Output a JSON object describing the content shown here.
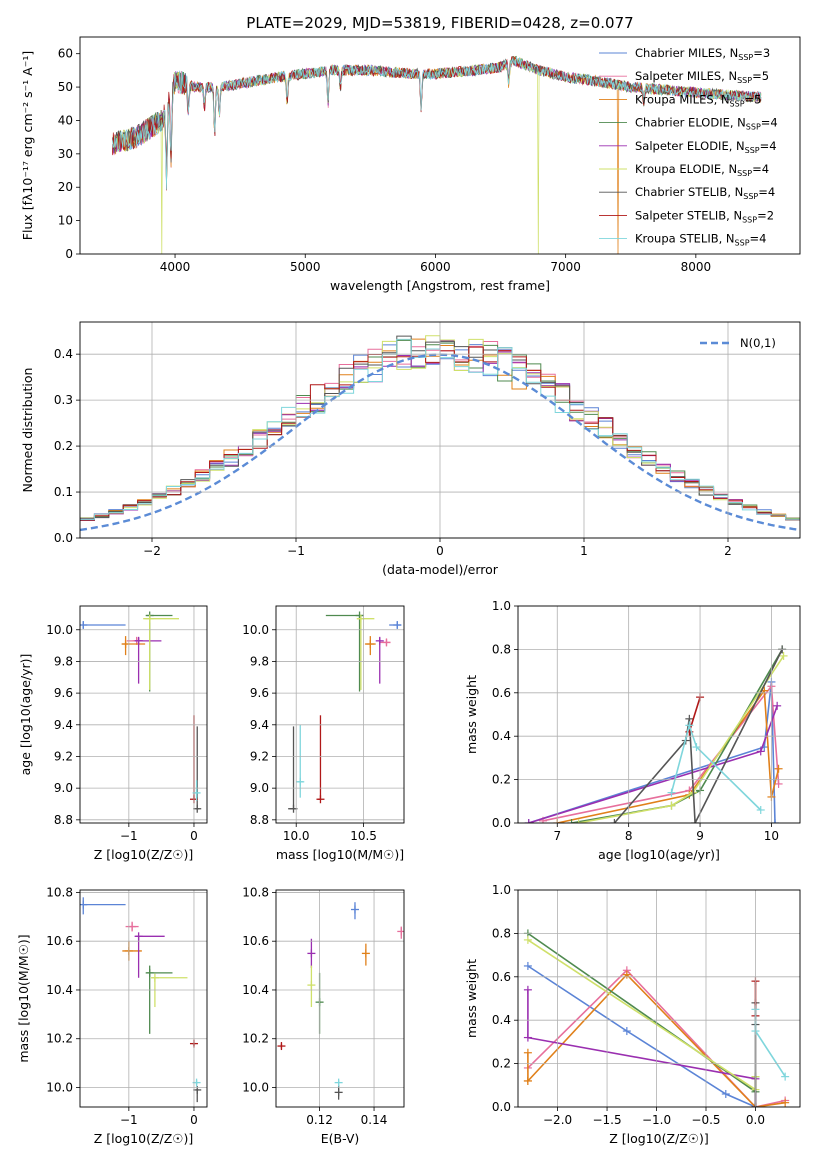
{
  "figure_title": "PLATE=2029, MJD=53819, FIBERID=0428, z=0.077",
  "colors": {
    "Chabrier MILES": "#5b84d6",
    "Salpeter MILES": "#e76f9c",
    "Kroupa MILES": "#e0801a",
    "Chabrier ELODIE": "#4f8a4f",
    "Salpeter ELODIE": "#9a2fb0",
    "Kroupa ELODIE": "#cfe06a",
    "Chabrier STELIB": "#555555",
    "Salpeter STELIB": "#b01818",
    "Kroupa STELIB": "#7fd6dc"
  },
  "chart_data": [
    {
      "id": "spectrum",
      "type": "line",
      "title": "PLATE=2029, MJD=53819, FIBERID=0428, z=0.077",
      "xlabel": "wavelength [Angstrom, rest frame]",
      "ylabel": "Flux [fλ10⁻¹⁷ erg cm⁻² s⁻¹ A⁻¹]",
      "xlim": [
        3270,
        8800
      ],
      "ylim": [
        0,
        65
      ],
      "xticks": [
        "4000",
        "5000",
        "6000",
        "7000",
        "8000"
      ],
      "yticks": [
        "0",
        "10",
        "20",
        "30",
        "40",
        "50",
        "60"
      ],
      "legend_position": "top-right",
      "legend": [
        {
          "label": "Chabrier MILES, N",
          "sub": "SSP",
          "eq": "=3",
          "series": "Chabrier MILES"
        },
        {
          "label": "Salpeter MILES, N",
          "sub": "SSP",
          "eq": "=5",
          "series": "Salpeter MILES"
        },
        {
          "label": "Kroupa MILES, N",
          "sub": "SSP",
          "eq": "=5",
          "series": "Kroupa MILES"
        },
        {
          "label": "Chabrier ELODIE, N",
          "sub": "SSP",
          "eq": "=4",
          "series": "Chabrier ELODIE"
        },
        {
          "label": "Salpeter ELODIE, N",
          "sub": "SSP",
          "eq": "=4",
          "series": "Salpeter ELODIE"
        },
        {
          "label": "Kroupa ELODIE, N",
          "sub": "SSP",
          "eq": "=4",
          "series": "Kroupa ELODIE"
        },
        {
          "label": "Chabrier STELIB, N",
          "sub": "SSP",
          "eq": "=4",
          "series": "Chabrier STELIB"
        },
        {
          "label": "Salpeter STELIB, N",
          "sub": "SSP",
          "eq": "=2",
          "series": "Salpeter STELIB"
        },
        {
          "label": "Kroupa STELIB, N",
          "sub": "SSP",
          "eq": "=4",
          "series": "Kroupa STELIB"
        }
      ],
      "continuum_x": [
        3520,
        3700,
        3900,
        4000,
        4150,
        4350,
        4500,
        4800,
        5000,
        5200,
        5500,
        5800,
        6000,
        6300,
        6500,
        6600,
        6800,
        7000,
        7200,
        7500,
        7800,
        8100,
        8500
      ],
      "continuum_y": [
        33,
        35,
        40,
        52,
        50,
        50,
        51,
        53,
        54,
        55,
        55,
        54,
        54,
        55,
        56,
        58,
        55,
        53,
        52,
        50,
        49,
        48,
        47
      ],
      "absorption_lines": [
        [
          3934,
          22
        ],
        [
          3969,
          20
        ],
        [
          4102,
          8
        ],
        [
          4226,
          6
        ],
        [
          4304,
          14
        ],
        [
          4340,
          8
        ],
        [
          4861,
          8
        ],
        [
          5175,
          10
        ],
        [
          5270,
          5
        ],
        [
          5890,
          10
        ],
        [
          6563,
          6
        ],
        [
          7600,
          4
        ]
      ],
      "dropouts": [
        {
          "series": "Kroupa ELODIE",
          "x": 3900
        },
        {
          "series": "Kroupa ELODIE",
          "x": 6790
        },
        {
          "series": "Kroupa MILES",
          "x": 7400
        }
      ]
    },
    {
      "id": "residuals",
      "type": "histogram",
      "xlabel": "(data-model)/error",
      "ylabel": "Normed distribution",
      "xlim": [
        -2.5,
        2.5
      ],
      "ylim": [
        0,
        0.47
      ],
      "xticks": [
        "−2",
        "−1",
        "0",
        "1",
        "2"
      ],
      "yticks": [
        "0.0",
        "0.1",
        "0.2",
        "0.3",
        "0.4"
      ],
      "bin_width": 0.1,
      "reference": {
        "label": "N(0,1)",
        "mean": 0,
        "sigma": 1
      },
      "legend_position": "top-right"
    },
    {
      "id": "age-vs-Z",
      "type": "scatter",
      "xlabel": "Z [log10(Z/Z☉)]",
      "ylabel": "age [log10(age/yr)]",
      "xlim": [
        -1.75,
        0.2
      ],
      "ylim": [
        8.78,
        10.15
      ],
      "xticks": [
        "−1",
        "0"
      ],
      "yticks": [
        "8.8",
        "9.0",
        "9.2",
        "9.4",
        "9.6",
        "9.8",
        "10.0"
      ],
      "points": [
        {
          "series": "Chabrier MILES",
          "x": -1.7,
          "y": 10.03,
          "xerr": [
            0.0,
            0.65
          ],
          "yerr": [
            0.02,
            0.02
          ]
        },
        {
          "series": "Salpeter MILES",
          "x": -0.88,
          "y": 9.93,
          "xerr": [
            0.15,
            0.1
          ],
          "yerr": [
            0.02,
            0.02
          ]
        },
        {
          "series": "Kroupa MILES",
          "x": -1.05,
          "y": 9.91,
          "xerr": [
            0.05,
            0.3
          ],
          "yerr": [
            0.07,
            0.05
          ]
        },
        {
          "series": "Chabrier ELODIE",
          "x": -0.68,
          "y": 10.09,
          "xerr": [
            0.05,
            0.35
          ],
          "yerr": [
            0.48,
            0.0
          ]
        },
        {
          "series": "Salpeter ELODIE",
          "x": -0.85,
          "y": 9.93,
          "xerr": [
            0.05,
            0.35
          ],
          "yerr": [
            0.27,
            0.02
          ]
        },
        {
          "series": "Kroupa ELODIE",
          "x": -0.68,
          "y": 10.07,
          "xerr": [
            0.1,
            0.45
          ],
          "yerr": [
            0.45,
            0.0
          ]
        },
        {
          "series": "Chabrier STELIB",
          "x": 0.05,
          "y": 8.87,
          "xerr": [
            0.02,
            0.03
          ],
          "yerr": [
            0.0,
            0.52
          ]
        },
        {
          "series": "Salpeter STELIB",
          "x": 0.0,
          "y": 8.93,
          "xerr": [
            0.02,
            0.02
          ],
          "yerr": [
            0.0,
            0.53
          ]
        },
        {
          "series": "Kroupa STELIB",
          "x": 0.04,
          "y": 8.97,
          "xerr": [
            0.03,
            0.03
          ],
          "yerr": [
            0.05,
            0.08
          ]
        }
      ]
    },
    {
      "id": "age-vs-mass",
      "type": "scatter",
      "xlabel": "mass [log10(M/M☉)]",
      "ylabel": "",
      "xlim": [
        9.85,
        10.8
      ],
      "ylim": [
        8.78,
        10.15
      ],
      "xticks": [
        "10.0",
        "10.5"
      ],
      "yticks": [
        "8.8",
        "9.0",
        "9.2",
        "9.4",
        "9.6",
        "9.8",
        "10.0"
      ],
      "points": [
        {
          "series": "Chabrier MILES",
          "x": 10.75,
          "y": 10.03,
          "xerr": [
            0.06,
            0.03
          ],
          "yerr": [
            0.02,
            0.02
          ]
        },
        {
          "series": "Salpeter MILES",
          "x": 10.67,
          "y": 9.92,
          "xerr": [
            0.05,
            0.03
          ],
          "yerr": [
            0.02,
            0.02
          ]
        },
        {
          "series": "Kroupa MILES",
          "x": 10.55,
          "y": 9.91,
          "xerr": [
            0.04,
            0.04
          ],
          "yerr": [
            0.07,
            0.05
          ]
        },
        {
          "series": "Chabrier ELODIE",
          "x": 10.47,
          "y": 10.09,
          "xerr": [
            0.25,
            0.03
          ],
          "yerr": [
            0.48,
            0.0
          ]
        },
        {
          "series": "Salpeter ELODIE",
          "x": 10.62,
          "y": 9.93,
          "xerr": [
            0.0,
            0.0
          ],
          "yerr": [
            0.27,
            0.02
          ]
        },
        {
          "series": "Kroupa ELODIE",
          "x": 10.48,
          "y": 10.07,
          "xerr": [
            0.03,
            0.1
          ],
          "yerr": [
            0.45,
            0.0
          ]
        },
        {
          "series": "Chabrier STELIB",
          "x": 9.98,
          "y": 8.87,
          "xerr": [
            0.04,
            0.02
          ],
          "yerr": [
            0.0,
            0.52
          ]
        },
        {
          "series": "Salpeter STELIB",
          "x": 10.18,
          "y": 8.93,
          "xerr": [
            0.02,
            0.0
          ],
          "yerr": [
            0.0,
            0.53
          ]
        },
        {
          "series": "Kroupa STELIB",
          "x": 10.03,
          "y": 9.04,
          "xerr": [
            0.02,
            0.02
          ],
          "yerr": [
            0.1,
            0.36
          ]
        }
      ]
    },
    {
      "id": "weight-vs-age",
      "type": "line",
      "xlabel": "age [log10(age/yr)]",
      "ylabel": "mass weight",
      "xlim": [
        6.45,
        10.4
      ],
      "ylim": [
        0,
        1
      ],
      "xticks": [
        "7",
        "8",
        "9",
        "10"
      ],
      "yticks": [
        "0.0",
        "0.2",
        "0.4",
        "0.6",
        "0.8",
        "1.0"
      ],
      "series": [
        {
          "name": "Chabrier MILES",
          "x": [
            6.6,
            9.9,
            10.0,
            10.05
          ],
          "y": [
            0.0,
            0.35,
            0.65,
            0.0
          ]
        },
        {
          "name": "Salpeter MILES",
          "x": [
            6.8,
            8.85,
            10.0,
            10.1
          ],
          "y": [
            0.01,
            0.15,
            0.63,
            0.18
          ]
        },
        {
          "name": "Kroupa MILES",
          "x": [
            7.0,
            8.85,
            9.9,
            10.0,
            10.1
          ],
          "y": [
            0.0,
            0.13,
            0.61,
            0.12,
            0.25
          ]
        },
        {
          "name": "Chabrier ELODIE",
          "x": [
            7.2,
            8.6,
            9.0,
            10.15
          ],
          "y": [
            0.0,
            0.08,
            0.15,
            0.8
          ]
        },
        {
          "name": "Salpeter ELODIE",
          "x": [
            6.6,
            9.85,
            10.08
          ],
          "y": [
            0.0,
            0.33,
            0.54
          ]
        },
        {
          "name": "Kroupa ELODIE",
          "x": [
            7.3,
            8.6,
            8.9,
            10.17
          ],
          "y": [
            0.0,
            0.08,
            0.14,
            0.77
          ]
        },
        {
          "name": "Chabrier STELIB",
          "x": [
            7.8,
            8.8,
            8.85,
            8.93,
            10.15
          ],
          "y": [
            0.0,
            0.38,
            0.48,
            0.0,
            0.8
          ]
        },
        {
          "name": "Salpeter STELIB",
          "x": [
            8.85,
            9.0
          ],
          "y": [
            0.42,
            0.58
          ]
        },
        {
          "name": "Kroupa STELIB",
          "x": [
            8.6,
            8.85,
            8.95,
            9.85
          ],
          "y": [
            0.14,
            0.45,
            0.35,
            0.06
          ]
        }
      ]
    },
    {
      "id": "mass-vs-Z",
      "type": "scatter",
      "xlabel": "Z [log10(Z/Z☉)]",
      "ylabel": "mass [log10(M/M☉)]",
      "xlim": [
        -1.75,
        0.2
      ],
      "ylim": [
        9.92,
        10.81
      ],
      "xticks": [
        "−1",
        "0"
      ],
      "yticks": [
        "10.0",
        "10.2",
        "10.4",
        "10.6",
        "10.8"
      ],
      "points": [
        {
          "series": "Chabrier MILES",
          "x": -1.7,
          "y": 10.75,
          "xerr": [
            0.0,
            0.65
          ],
          "yerr": [
            0.04,
            0.03
          ]
        },
        {
          "series": "Salpeter MILES",
          "x": -0.95,
          "y": 10.66,
          "xerr": [
            0.1,
            0.1
          ],
          "yerr": [
            0.02,
            0.02
          ]
        },
        {
          "series": "Kroupa MILES",
          "x": -1.0,
          "y": 10.56,
          "xerr": [
            0.1,
            0.2
          ],
          "yerr": [
            0.04,
            0.04
          ]
        },
        {
          "series": "Chabrier ELODIE",
          "x": -0.68,
          "y": 10.47,
          "xerr": [
            0.05,
            0.35
          ],
          "yerr": [
            0.25,
            0.03
          ]
        },
        {
          "series": "Salpeter ELODIE",
          "x": -0.85,
          "y": 10.62,
          "xerr": [
            0.05,
            0.4
          ],
          "yerr": [
            0.17,
            0.0
          ]
        },
        {
          "series": "Kroupa ELODIE",
          "x": -0.6,
          "y": 10.45,
          "xerr": [
            0.05,
            0.5
          ],
          "yerr": [
            0.12,
            0.0
          ]
        },
        {
          "series": "Chabrier STELIB",
          "x": 0.05,
          "y": 9.99,
          "xerr": [
            0.02,
            0.02
          ],
          "yerr": [
            0.05,
            0.0
          ]
        },
        {
          "series": "Salpeter STELIB",
          "x": 0.0,
          "y": 10.18,
          "xerr": [
            0.02,
            0.02
          ],
          "yerr": [
            0.01,
            0.0
          ]
        },
        {
          "series": "Kroupa STELIB",
          "x": 0.04,
          "y": 10.02,
          "xerr": [
            0.02,
            0.02
          ],
          "yerr": [
            0.01,
            0.01
          ]
        }
      ]
    },
    {
      "id": "mass-vs-ebv",
      "type": "scatter",
      "xlabel": "E(B-V)",
      "ylabel": "",
      "xlim": [
        0.104,
        0.151
      ],
      "ylim": [
        9.92,
        10.81
      ],
      "xticks": [
        "0.12",
        "0.14"
      ],
      "yticks": [
        "10.0",
        "10.2",
        "10.4",
        "10.6",
        "10.8"
      ],
      "points": [
        {
          "series": "Chabrier MILES",
          "x": 0.133,
          "y": 10.73,
          "yerr": [
            0.04,
            0.03
          ]
        },
        {
          "series": "Salpeter MILES",
          "x": 0.15,
          "y": 10.64,
          "yerr": [
            0.03,
            0.02
          ]
        },
        {
          "series": "Kroupa MILES",
          "x": 0.137,
          "y": 10.55,
          "yerr": [
            0.05,
            0.04
          ]
        },
        {
          "series": "Chabrier ELODIE",
          "x": 0.12,
          "y": 10.35,
          "yerr": [
            0.13,
            0.12
          ]
        },
        {
          "series": "Salpeter ELODIE",
          "x": 0.117,
          "y": 10.55,
          "yerr": [
            0.06,
            0.06
          ]
        },
        {
          "series": "Kroupa ELODIE",
          "x": 0.117,
          "y": 10.42,
          "yerr": [
            0.09,
            0.08
          ]
        },
        {
          "series": "Chabrier STELIB",
          "x": 0.127,
          "y": 9.98,
          "yerr": [
            0.03,
            0.03
          ]
        },
        {
          "series": "Salpeter STELIB",
          "x": 0.106,
          "y": 10.17,
          "yerr": [
            0.01,
            0.01
          ]
        },
        {
          "series": "Kroupa STELIB",
          "x": 0.127,
          "y": 10.02,
          "yerr": [
            0.01,
            0.01
          ]
        }
      ]
    },
    {
      "id": "weight-vs-Z",
      "type": "line",
      "xlabel": "Z [log10(Z/Z☉)]",
      "ylabel": "mass weight",
      "xlim": [
        -2.4,
        0.45
      ],
      "ylim": [
        0,
        1
      ],
      "xticks": [
        "−2.0",
        "−1.5",
        "−1.0",
        "−0.5",
        "0.0"
      ],
      "yticks": [
        "0.0",
        "0.2",
        "0.4",
        "0.6",
        "0.8",
        "1.0"
      ],
      "series": [
        {
          "name": "Chabrier MILES",
          "x": [
            -2.3,
            -1.3,
            -0.3,
            0.0
          ],
          "y": [
            0.65,
            0.35,
            0.06,
            0.0
          ]
        },
        {
          "name": "Salpeter MILES",
          "x": [
            -2.3,
            -1.3,
            0.0,
            0.3
          ],
          "y": [
            0.18,
            0.63,
            0.0,
            0.03
          ]
        },
        {
          "name": "Kroupa MILES",
          "x": [
            -2.3,
            -2.3,
            -2.3,
            -1.3,
            0.0,
            0.3
          ],
          "y": [
            0.25,
            0.12,
            0.12,
            0.61,
            0.0,
            0.02
          ]
        },
        {
          "name": "Chabrier ELODIE",
          "x": [
            -2.3,
            0.0,
            0.0
          ],
          "y": [
            0.8,
            0.07,
            0.14
          ]
        },
        {
          "name": "Salpeter ELODIE",
          "x": [
            -2.3,
            -2.3,
            0.0,
            0.0
          ],
          "y": [
            0.54,
            0.32,
            0.13,
            0.0
          ]
        },
        {
          "name": "Kroupa ELODIE",
          "x": [
            -2.3,
            0.0,
            0.0
          ],
          "y": [
            0.77,
            0.08,
            0.14
          ]
        },
        {
          "name": "Chabrier STELIB",
          "x": [
            0.0,
            0.0,
            0.0,
            0.0
          ],
          "y": [
            0.0,
            0.48,
            0.38,
            0.0
          ]
        },
        {
          "name": "Salpeter STELIB",
          "x": [
            0.0,
            0.0
          ],
          "y": [
            0.42,
            0.58
          ]
        },
        {
          "name": "Kroupa STELIB",
          "x": [
            0.0,
            0.0,
            0.3
          ],
          "y": [
            0.45,
            0.35,
            0.14
          ]
        }
      ]
    }
  ]
}
